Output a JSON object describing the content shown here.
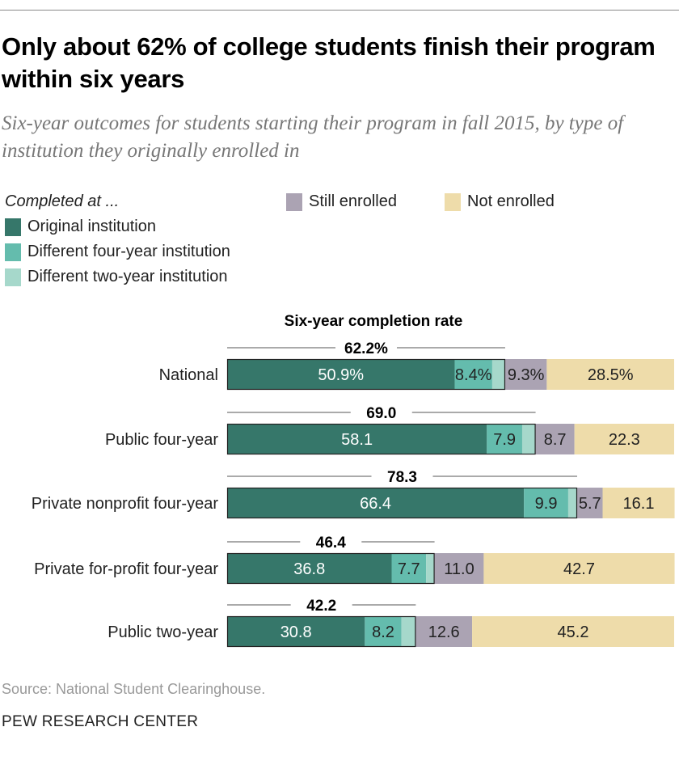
{
  "title": "Only about 62% of college students finish their program within six years",
  "subtitle": "Six-year outcomes for students starting their program in fall 2015, by type of institution they originally enrolled in",
  "source": "Source: National Student Clearinghouse.",
  "brand": "PEW RESEARCH CENTER",
  "legend": {
    "heading": "Completed at ...",
    "items": [
      {
        "label": "Original institution",
        "color": "#36776a"
      },
      {
        "label": "Different four-year institution",
        "color": "#64bcad"
      },
      {
        "label": "Different two-year institution",
        "color": "#a6d8cb"
      },
      {
        "label": "Still enrolled",
        "color": "#aba3b3"
      },
      {
        "label": "Not enrolled",
        "color": "#eedcaa"
      }
    ]
  },
  "chart_data": {
    "type": "bar",
    "orientation": "horizontal",
    "stacked": true,
    "column_header": "Six-year completion rate",
    "categories": [
      "National",
      "Public four-year",
      "Private nonprofit four-year",
      "Private for-profit four-year",
      "Public two-year"
    ],
    "completion_rate": [
      62.2,
      69.0,
      78.3,
      46.4,
      42.2
    ],
    "completion_labels": [
      "62.2%",
      "69.0",
      "78.3",
      "46.4",
      "42.2"
    ],
    "series": [
      {
        "name": "Original institution",
        "values": [
          50.9,
          58.1,
          66.4,
          36.8,
          30.8
        ],
        "labels": [
          "50.9%",
          "58.1",
          "66.4",
          "36.8",
          "30.8"
        ],
        "color": "#36776a"
      },
      {
        "name": "Different four-year institution",
        "values": [
          8.4,
          7.9,
          9.9,
          7.7,
          8.2
        ],
        "labels": [
          "8.4%",
          "7.9",
          "9.9",
          "7.7",
          "8.2"
        ],
        "color": "#64bcad"
      },
      {
        "name": "Different two-year institution",
        "values": [
          2.9,
          3.0,
          2.0,
          1.9,
          3.2
        ],
        "labels": [
          "",
          "",
          "",
          "",
          ""
        ],
        "color": "#a6d8cb"
      },
      {
        "name": "Still enrolled",
        "values": [
          9.3,
          8.7,
          5.7,
          11.0,
          12.6
        ],
        "labels": [
          "9.3%",
          "8.7",
          "5.7",
          "11.0",
          "12.6"
        ],
        "color": "#aba3b3"
      },
      {
        "name": "Not enrolled",
        "values": [
          28.5,
          22.3,
          16.1,
          42.7,
          45.2
        ],
        "labels": [
          "28.5%",
          "22.3",
          "16.1",
          "42.7",
          "45.2"
        ],
        "color": "#eedcaa"
      }
    ],
    "xlim": [
      0,
      100
    ]
  }
}
